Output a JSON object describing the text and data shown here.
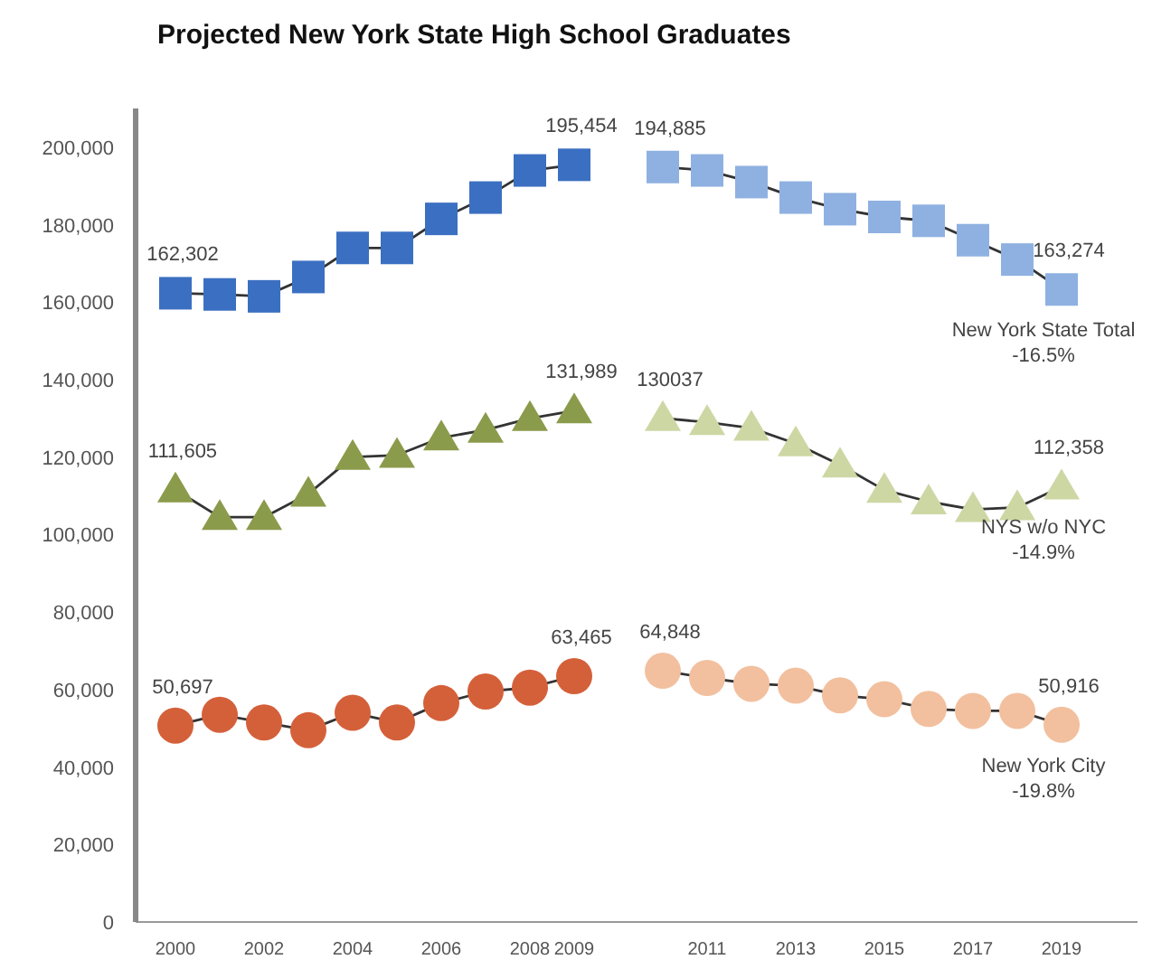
{
  "chart_data": {
    "type": "line",
    "title": "Projected New York State High School Graduates",
    "categories": [
      "2000",
      null,
      "2002",
      null,
      "2004",
      null,
      "2006",
      null,
      "2008",
      "2009",
      null,
      null,
      "2011",
      null,
      "2013",
      null,
      "2015",
      null,
      "2017",
      null,
      "2019"
    ],
    "ylim": [
      0,
      210000
    ],
    "yticks": [
      {
        "value": 0,
        "label": "0"
      },
      {
        "value": 20000,
        "label": "20,000"
      },
      {
        "value": 40000,
        "label": "40,000"
      },
      {
        "value": 60000,
        "label": "60,000"
      },
      {
        "value": 80000,
        "label": "80,000"
      },
      {
        "value": 100000,
        "label": "100,000"
      },
      {
        "value": 120000,
        "label": "120,000"
      },
      {
        "value": 140000,
        "label": "140,000"
      },
      {
        "value": 160000,
        "label": "160,000"
      },
      {
        "value": 180000,
        "label": "180,000"
      },
      {
        "value": 200000,
        "label": "200,000"
      }
    ],
    "grid": false,
    "series": [
      {
        "color": "#3b6fc2",
        "marker": "square",
        "values": [
          162302,
          162000,
          161500,
          166500,
          174000,
          174000,
          181500,
          187000,
          194000,
          195454,
          null,
          null,
          null,
          null,
          null,
          null,
          null,
          null,
          null,
          null,
          null
        ],
        "value_labels": [
          "162,302",
          null,
          null,
          null,
          null,
          null,
          null,
          null,
          null,
          "195,454",
          null,
          null,
          null,
          null,
          null,
          null,
          null,
          null,
          null,
          null,
          null
        ]
      },
      {
        "name": "New York State Total",
        "color": "#8fb1e1",
        "marker": "square",
        "values": [
          null,
          null,
          null,
          null,
          null,
          null,
          null,
          null,
          null,
          null,
          null,
          194885,
          194000,
          191000,
          187000,
          184000,
          182000,
          181000,
          176000,
          171000,
          163274
        ],
        "value_labels": [
          null,
          null,
          null,
          null,
          null,
          null,
          null,
          null,
          null,
          null,
          null,
          "194,885",
          null,
          null,
          null,
          null,
          null,
          null,
          null,
          null,
          "163,274"
        ]
      },
      {
        "color": "#8a9b4b",
        "marker": "triangle",
        "values": [
          111605,
          104500,
          104500,
          110500,
          120000,
          120500,
          125000,
          127000,
          130000,
          131989,
          null,
          null,
          null,
          null,
          null,
          null,
          null,
          null,
          null,
          null,
          null
        ],
        "value_labels": [
          "111,605",
          null,
          null,
          null,
          null,
          null,
          null,
          null,
          null,
          "131,989",
          null,
          null,
          null,
          null,
          null,
          null,
          null,
          null,
          null,
          null,
          null
        ]
      },
      {
        "name": "NYS w/o NYC",
        "color": "#cdd7a4",
        "marker": "triangle",
        "values": [
          null,
          null,
          null,
          null,
          null,
          null,
          null,
          null,
          null,
          null,
          null,
          130037,
          129000,
          127500,
          123500,
          118000,
          111500,
          108500,
          106500,
          107000,
          112358
        ],
        "value_labels": [
          null,
          null,
          null,
          null,
          null,
          null,
          null,
          null,
          null,
          null,
          null,
          "130037",
          null,
          null,
          null,
          null,
          null,
          null,
          null,
          null,
          "112,358"
        ]
      },
      {
        "color": "#d4603a",
        "marker": "circle",
        "values": [
          50697,
          53500,
          51500,
          49500,
          54000,
          51500,
          56500,
          59500,
          60500,
          63465,
          null,
          null,
          null,
          null,
          null,
          null,
          null,
          null,
          null,
          null,
          null
        ],
        "value_labels": [
          "50,697",
          null,
          null,
          null,
          null,
          null,
          null,
          null,
          null,
          "63,465",
          null,
          null,
          null,
          null,
          null,
          null,
          null,
          null,
          null,
          null,
          null
        ]
      },
      {
        "name": "New York City",
        "color": "#f2c09f",
        "marker": "circle",
        "values": [
          null,
          null,
          null,
          null,
          null,
          null,
          null,
          null,
          null,
          null,
          null,
          64848,
          63000,
          61500,
          61000,
          58500,
          57500,
          55000,
          54500,
          54500,
          50916
        ],
        "value_labels": [
          null,
          null,
          null,
          null,
          null,
          null,
          null,
          null,
          null,
          null,
          null,
          "64,848",
          null,
          null,
          null,
          null,
          null,
          null,
          null,
          null,
          "50,916"
        ]
      }
    ],
    "annotations": [
      {
        "text": "-16.5%",
        "x": "2019",
        "y": 163274
      },
      {
        "text": "-14.9%",
        "x": "2019",
        "y": 112358
      },
      {
        "text": "-19.8%",
        "x": "2019",
        "y": 50916
      }
    ]
  }
}
